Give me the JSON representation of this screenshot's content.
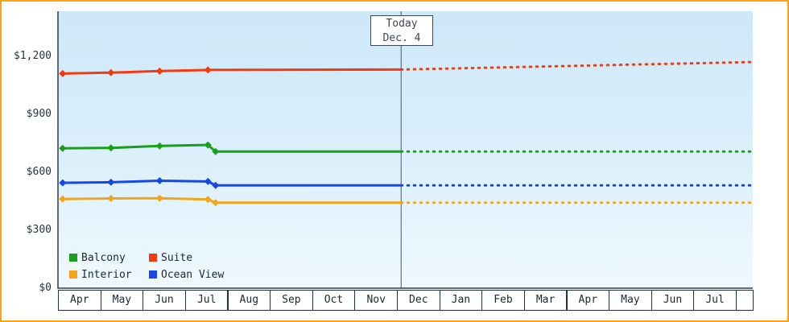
{
  "ui": {
    "border_color": "#ffa217",
    "background": "#ffffff",
    "axis_color": "#2c3a47",
    "today_line_color": "#46586c"
  },
  "today_box": {
    "line1": "Today",
    "line2": "Dec. 4"
  },
  "legend": {
    "position": "bottom-left",
    "items": [
      {
        "label": "Balcony",
        "color": "#1b9e1b"
      },
      {
        "label": "Suite",
        "color": "#f23a10"
      },
      {
        "label": "Interior",
        "color": "#f2a51c"
      },
      {
        "label": "Ocean View",
        "color": "#1747e8"
      }
    ]
  },
  "chart_data": {
    "type": "line",
    "title": "",
    "xlabel": "",
    "ylabel": "",
    "grid": false,
    "x_months": [
      "Apr",
      "May",
      "Jun",
      "Jul",
      "Aug",
      "Sep",
      "Oct",
      "Nov",
      "Dec",
      "Jan",
      "Feb",
      "Mar",
      "Apr",
      "May",
      "Jun",
      "Jul"
    ],
    "x_extent_months": 16.4,
    "y_ticks": [
      {
        "label": "$0",
        "value": 0
      },
      {
        "label": "$300",
        "value": 300
      },
      {
        "label": "$600",
        "value": 600
      },
      {
        "label": "$900",
        "value": 900
      },
      {
        "label": "$1,200",
        "value": 1200
      }
    ],
    "ylim": [
      0,
      1435
    ],
    "today": {
      "month_pos": 8.1,
      "date_label": "Dec. 4"
    },
    "forecast_style": "dotted",
    "series": [
      {
        "name": "Suite",
        "color": "#f23a10",
        "solid_points": [
          [
            0.11,
            1112
          ],
          [
            1.25,
            1117
          ],
          [
            2.4,
            1125
          ],
          [
            3.54,
            1131
          ]
        ],
        "today_value": 1133,
        "forecast_end_value": 1172
      },
      {
        "name": "Balcony",
        "color": "#1b9e1b",
        "solid_points": [
          [
            0.11,
            725
          ],
          [
            1.25,
            727
          ],
          [
            2.4,
            737
          ],
          [
            3.54,
            742
          ],
          [
            3.72,
            708
          ]
        ],
        "today_value": 708,
        "forecast_end_value": 708
      },
      {
        "name": "Ocean View",
        "color": "#1747e8",
        "solid_points": [
          [
            0.11,
            546
          ],
          [
            1.25,
            549
          ],
          [
            2.4,
            557
          ],
          [
            3.54,
            553
          ],
          [
            3.72,
            533
          ]
        ],
        "today_value": 533,
        "forecast_end_value": 533
      },
      {
        "name": "Interior",
        "color": "#f2a51c",
        "solid_points": [
          [
            0.11,
            462
          ],
          [
            1.25,
            465
          ],
          [
            2.4,
            466
          ],
          [
            3.54,
            460
          ],
          [
            3.72,
            443
          ]
        ],
        "today_value": 443,
        "forecast_end_value": 443
      }
    ]
  }
}
